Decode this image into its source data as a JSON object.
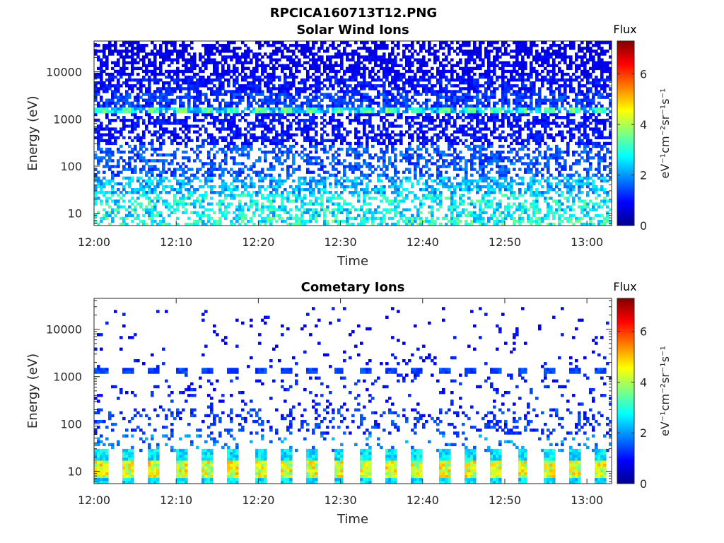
{
  "figure": {
    "filename": "RPCICA160713T12.PNG"
  },
  "chart_data": [
    {
      "type": "heatmap",
      "title": "Solar Wind Ions",
      "xlabel": "Time",
      "ylabel": "Energy (eV)",
      "x_ticks": [
        "12:00",
        "12:10",
        "12:20",
        "12:30",
        "12:40",
        "12:50",
        "13:00"
      ],
      "x_range_min": [
        0,
        63
      ],
      "y_scale": "log",
      "y_ticks": [
        "10",
        "100",
        "1000",
        "10000"
      ],
      "y_tick_values": [
        10,
        100,
        1000,
        10000
      ],
      "y_range": [
        5.5,
        45000
      ],
      "colorbar": {
        "label": "Flux",
        "unit": "eV⁻¹cm⁻²sr⁻¹s⁻¹",
        "ticks": [
          "0",
          "2",
          "4",
          "6"
        ],
        "range": [
          0,
          7.3
        ],
        "colormap": "jet"
      },
      "bands": [
        {
          "e_min": 25000,
          "e_max": 45000,
          "occurrence": 0.55,
          "level": 0.7
        },
        {
          "e_min": 8000,
          "e_max": 25000,
          "occurrence": 0.6,
          "level": 0.8
        },
        {
          "e_min": 3500,
          "e_max": 8000,
          "occurrence": 0.65,
          "level": 1.0
        },
        {
          "e_min": 1800,
          "e_max": 3500,
          "occurrence": 0.65,
          "level": 1.3
        },
        {
          "e_min": 1300,
          "e_max": 1800,
          "occurrence": 0.75,
          "level": 2.2
        },
        {
          "e_min": 300,
          "e_max": 1300,
          "occurrence": 0.55,
          "level": 1.0
        },
        {
          "e_min": 60,
          "e_max": 300,
          "occurrence": 0.45,
          "level": 1.5
        },
        {
          "e_min": 25,
          "e_max": 60,
          "occurrence": 0.55,
          "level": 2.2
        },
        {
          "e_min": 9,
          "e_max": 25,
          "occurrence": 0.5,
          "level": 2.7
        },
        {
          "e_min": 5.5,
          "e_max": 9,
          "occurrence": 0.55,
          "level": 2.9
        }
      ],
      "periodic_features": [
        {
          "e_min": 1300,
          "e_max": 1800,
          "period_min": 3.2,
          "level": 3.3
        }
      ]
    },
    {
      "type": "heatmap",
      "title": "Cometary Ions",
      "xlabel": "Time",
      "ylabel": "Energy (eV)",
      "x_ticks": [
        "12:00",
        "12:10",
        "12:20",
        "12:30",
        "12:40",
        "12:50",
        "13:00"
      ],
      "x_range_min": [
        0,
        63
      ],
      "y_scale": "log",
      "y_ticks": [
        "10",
        "100",
        "1000",
        "10000"
      ],
      "y_tick_values": [
        10,
        100,
        1000,
        10000
      ],
      "y_range": [
        5.5,
        45000
      ],
      "colorbar": {
        "label": "Flux",
        "unit": "eV⁻¹cm⁻²sr⁻¹s⁻¹",
        "ticks": [
          "0",
          "2",
          "4",
          "6"
        ],
        "range": [
          0,
          7.3
        ],
        "colormap": "jet"
      },
      "bands": [
        {
          "e_min": 3000,
          "e_max": 30000,
          "occurrence": 0.04,
          "level": 0.9
        },
        {
          "e_min": 1600,
          "e_max": 3000,
          "occurrence": 0.06,
          "level": 1.0
        },
        {
          "e_min": 200,
          "e_max": 1100,
          "occurrence": 0.08,
          "level": 1.1
        },
        {
          "e_min": 60,
          "e_max": 200,
          "occurrence": 0.22,
          "level": 1.3
        },
        {
          "e_min": 25,
          "e_max": 60,
          "occurrence": 0.12,
          "level": 1.8
        }
      ],
      "periodic_features": [
        {
          "e_min": 1150,
          "e_max": 1550,
          "period_min": 3.2,
          "level": 1.4
        },
        {
          "e_min": 18,
          "e_max": 28,
          "period_min": 3.2,
          "level": 2.6
        },
        {
          "e_min": 7.5,
          "e_max": 18,
          "period_min": 3.2,
          "level": 4.3
        },
        {
          "e_min": 5.5,
          "e_max": 7.5,
          "period_min": 3.2,
          "level": 2.5
        }
      ]
    }
  ]
}
